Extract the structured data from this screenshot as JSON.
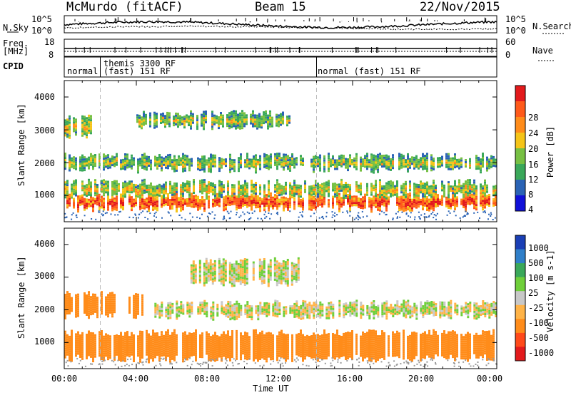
{
  "header": {
    "station": "McMurdo (fitACF)",
    "beam": "Beam 15",
    "date": "22/Nov/2015"
  },
  "top_panels": {
    "nsky_label": "N.Sky",
    "nsky_ticks": [
      "10^5",
      "10^0"
    ],
    "nsearch_label": "N.Search",
    "nsearch_ticks": [
      "10^5",
      "10^0"
    ],
    "freq_label": "Freq.",
    "freq_unit": "[MHz]",
    "freq_ticks": [
      "18",
      "8"
    ],
    "nave_label": "Nave",
    "nave_ticks": [
      "60",
      "0"
    ],
    "cpid_label": "CPID",
    "cpid_segments": [
      {
        "text": "normal",
        "start_h": 0.0,
        "end_h": 2.0
      },
      {
        "text": "themis 3300 RF",
        "start_h": 2.0,
        "end_h": 14.0
      },
      {
        "text": "(fast) 151 RF",
        "start_h": 2.0,
        "end_h": 14.0
      },
      {
        "text": "normal (fast) 151 RF",
        "start_h": 14.0,
        "end_h": 24.0
      }
    ]
  },
  "power_scale": {
    "label": "Power [dB]",
    "ticks": [
      "28",
      "24",
      "20",
      "16",
      "12",
      "8",
      "4"
    ],
    "colors": [
      "#e31a1c",
      "#ff5a1a",
      "#ff8c1a",
      "#f5c418",
      "#77c043",
      "#3aa85a",
      "#2a63b5",
      "#1010d8"
    ]
  },
  "velocity_scale": {
    "label": "Velocity [m s-1]",
    "ticks": [
      "1000",
      "500",
      "100",
      "25",
      "-25",
      "-100",
      "-500",
      "-1000"
    ],
    "colors": [
      "#1a3fb5",
      "#2f7fc9",
      "#3aa85a",
      "#6fcf3a",
      "#c8c8c8",
      "#ffb347",
      "#ff8c1a",
      "#ff4a1a",
      "#e31a1c"
    ]
  },
  "chart_data": [
    {
      "type": "heatmap",
      "title": "Power",
      "xlabel": "Time UT",
      "ylabel": "Slant Range [km]",
      "xlim": [
        0,
        24
      ],
      "ylim": [
        200,
        4500
      ],
      "x_ticks": [
        "00:00",
        "04:00",
        "08:00",
        "12:00",
        "16:00",
        "20:00",
        "00:00"
      ],
      "y_ticks": [
        "4000",
        "3000",
        "2000",
        "1000"
      ],
      "colorbar": "Power [dB]",
      "bands": [
        {
          "range_km": [
            600,
            1000
          ],
          "start_h": 0.0,
          "end_h": 24.0,
          "level_db": 22
        },
        {
          "range_km": [
            1000,
            1400
          ],
          "start_h": 0.0,
          "end_h": 24.0,
          "level_db": 12
        },
        {
          "range_km": [
            1800,
            2200
          ],
          "start_h": 0.0,
          "end_h": 24.0,
          "level_db": 10
        },
        {
          "range_km": [
            2800,
            3400
          ],
          "start_h": 0.0,
          "end_h": 1.5,
          "level_db": 12
        },
        {
          "range_km": [
            3100,
            3500
          ],
          "start_h": 4.0,
          "end_h": 12.5,
          "level_db": 10
        }
      ]
    },
    {
      "type": "heatmap",
      "title": "Velocity",
      "xlabel": "Time UT",
      "ylabel": "Slant Range [km]",
      "xlim": [
        0,
        24
      ],
      "ylim": [
        200,
        4500
      ],
      "x_ticks": [
        "00:00",
        "04:00",
        "08:00",
        "12:00",
        "16:00",
        "20:00",
        "00:00"
      ],
      "y_ticks": [
        "4000",
        "3000",
        "2000",
        "1000"
      ],
      "colorbar": "Velocity [m s-1]",
      "bands": [
        {
          "range_km": [
            500,
            1300
          ],
          "start_h": 0.0,
          "end_h": 24.0,
          "velocity": -300
        },
        {
          "range_km": [
            1800,
            2500
          ],
          "start_h": 0.0,
          "end_h": 4.5,
          "velocity": -300
        },
        {
          "range_km": [
            1800,
            2200
          ],
          "start_h": 5.0,
          "end_h": 24.0,
          "velocity": 0
        },
        {
          "range_km": [
            2800,
            3500
          ],
          "start_h": 7.0,
          "end_h": 13.0,
          "velocity": 0
        }
      ]
    }
  ],
  "xlabel": "Time UT"
}
